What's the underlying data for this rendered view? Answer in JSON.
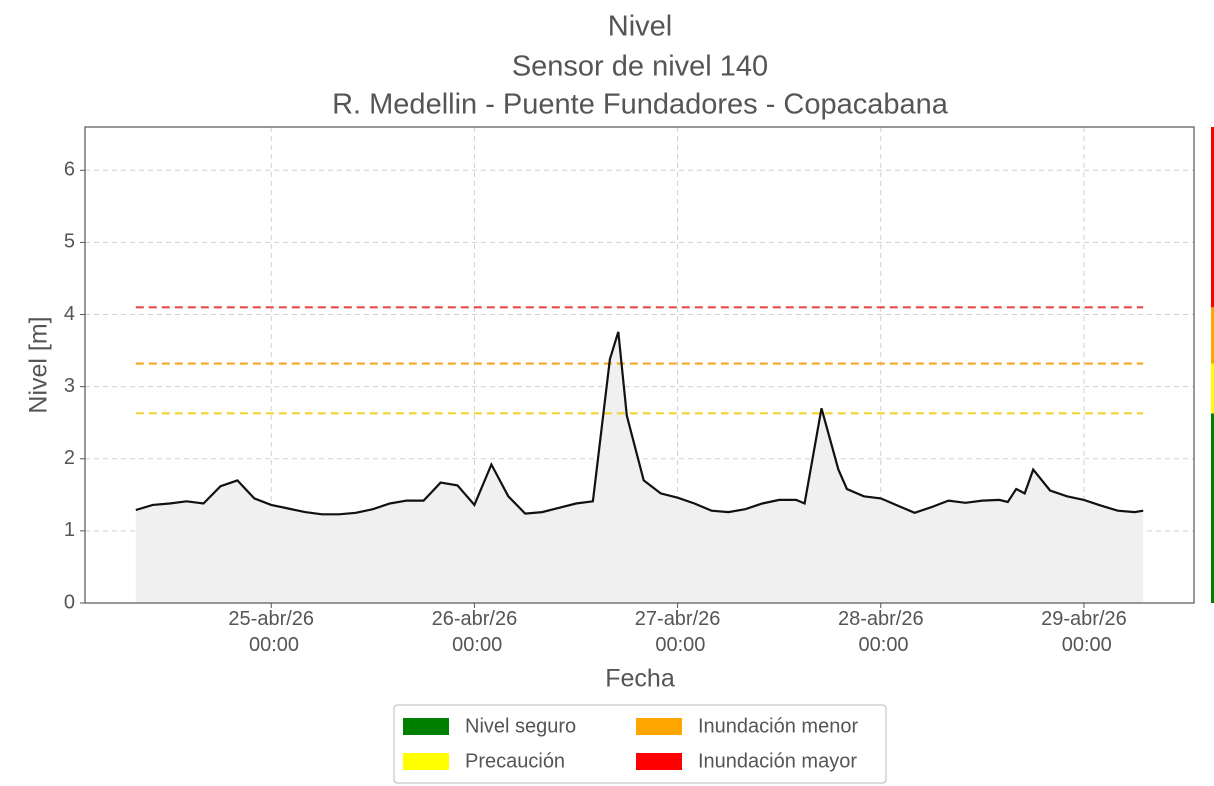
{
  "chart_data": {
    "type": "line",
    "title": [
      "Nivel",
      "Sensor de nivel 140",
      "R. Medellin - Puente Fundadores - Copacabana"
    ],
    "xlabel": "Fecha",
    "ylabel": "Nivel [m]",
    "x": [
      "2026-04-24T08:00",
      "2026-04-24T10:00",
      "2026-04-24T12:00",
      "2026-04-24T14:00",
      "2026-04-24T16:00",
      "2026-04-24T18:00",
      "2026-04-24T20:00",
      "2026-04-24T22:00",
      "2026-04-25T00:00",
      "2026-04-25T02:00",
      "2026-04-25T04:00",
      "2026-04-25T06:00",
      "2026-04-25T08:00",
      "2026-04-25T10:00",
      "2026-04-25T12:00",
      "2026-04-25T14:00",
      "2026-04-25T16:00",
      "2026-04-25T18:00",
      "2026-04-25T20:00",
      "2026-04-25T22:00",
      "2026-04-26T00:00",
      "2026-04-26T02:00",
      "2026-04-26T04:00",
      "2026-04-26T06:00",
      "2026-04-26T08:00",
      "2026-04-26T10:00",
      "2026-04-26T12:00",
      "2026-04-26T14:00",
      "2026-04-26T16:00",
      "2026-04-26T17:00",
      "2026-04-26T18:00",
      "2026-04-26T20:00",
      "2026-04-26T22:00",
      "2026-04-27T00:00",
      "2026-04-27T02:00",
      "2026-04-27T04:00",
      "2026-04-27T06:00",
      "2026-04-27T08:00",
      "2026-04-27T10:00",
      "2026-04-27T12:00",
      "2026-04-27T14:00",
      "2026-04-27T15:00",
      "2026-04-27T17:00",
      "2026-04-27T19:00",
      "2026-04-27T20:00",
      "2026-04-27T22:00",
      "2026-04-28T00:00",
      "2026-04-28T02:00",
      "2026-04-28T04:00",
      "2026-04-28T06:00",
      "2026-04-28T08:00",
      "2026-04-28T10:00",
      "2026-04-28T12:00",
      "2026-04-28T14:00",
      "2026-04-28T15:00",
      "2026-04-28T16:00",
      "2026-04-28T17:00",
      "2026-04-28T18:00",
      "2026-04-28T20:00",
      "2026-04-28T22:00",
      "2026-04-29T00:00",
      "2026-04-29T02:00",
      "2026-04-29T04:00",
      "2026-04-29T06:00",
      "2026-04-29T07:00"
    ],
    "series": [
      {
        "name": "Nivel",
        "color": "#111111",
        "values": [
          1.29,
          1.36,
          1.38,
          1.41,
          1.38,
          1.62,
          1.7,
          1.45,
          1.36,
          1.31,
          1.26,
          1.23,
          1.23,
          1.25,
          1.3,
          1.38,
          1.42,
          1.42,
          1.67,
          1.63,
          1.36,
          1.92,
          1.48,
          1.24,
          1.26,
          1.32,
          1.38,
          1.41,
          3.38,
          3.76,
          2.6,
          1.7,
          1.52,
          1.46,
          1.38,
          1.28,
          1.26,
          1.3,
          1.38,
          1.43,
          1.43,
          1.38,
          2.7,
          1.85,
          1.58,
          1.48,
          1.45,
          1.35,
          1.25,
          1.33,
          1.42,
          1.39,
          1.42,
          1.43,
          1.4,
          1.58,
          1.52,
          1.85,
          1.56,
          1.48,
          1.43,
          1.35,
          1.28,
          1.26,
          1.28
        ]
      }
    ],
    "xlim": [
      "2026-04-24T02:00",
      "2026-04-29T13:00"
    ],
    "xticks": [
      {
        "value": "2026-04-25T00:00",
        "label": "25-abr/26 00:00"
      },
      {
        "value": "2026-04-26T00:00",
        "label": "26-abr/26 00:00"
      },
      {
        "value": "2026-04-27T00:00",
        "label": "27-abr/26 00:00"
      },
      {
        "value": "2026-04-28T00:00",
        "label": "28-abr/26 00:00"
      },
      {
        "value": "2026-04-29T00:00",
        "label": "29-abr/26 00:00"
      }
    ],
    "ylim": [
      0,
      6.6
    ],
    "yticks": [
      0,
      1,
      2,
      3,
      4,
      5,
      6
    ],
    "grid": true,
    "fill_color": "#f0f0f0",
    "thresholds": [
      {
        "value": 2.63,
        "color": "#f2d335"
      },
      {
        "value": 3.32,
        "color": "#f5a623"
      },
      {
        "value": 4.1,
        "color": "#e84a4a"
      }
    ],
    "legend": [
      {
        "name": "Nivel seguro",
        "color": "#008000"
      },
      {
        "name": "Precaución",
        "color": "#ffff00"
      },
      {
        "name": "Inundación menor",
        "color": "#ffa500"
      },
      {
        "name": "Inundación mayor",
        "color": "#ff0000"
      }
    ],
    "legend_position": "bottom"
  }
}
